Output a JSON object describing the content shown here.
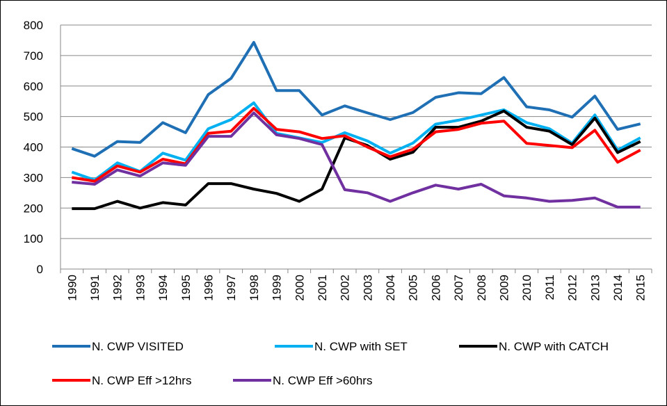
{
  "chart_data": {
    "type": "line",
    "categories": [
      "1990",
      "1991",
      "1992",
      "1993",
      "1994",
      "1995",
      "1996",
      "1997",
      "1998",
      "1999",
      "2000",
      "2001",
      "2002",
      "2003",
      "2004",
      "2005",
      "2006",
      "2007",
      "2008",
      "2009",
      "2010",
      "2011",
      "2012",
      "2013",
      "2014",
      "2015"
    ],
    "series": [
      {
        "name": "N. CWP VISITED",
        "color": "#1f6fb5",
        "values": [
          395,
          370,
          418,
          415,
          480,
          447,
          572,
          625,
          743,
          585,
          585,
          505,
          535,
          512,
          490,
          513,
          563,
          578,
          575,
          628,
          532,
          522,
          498,
          567,
          458,
          476
        ]
      },
      {
        "name": "N. CWP with SET",
        "color": "#00b0f0",
        "values": [
          318,
          292,
          348,
          320,
          380,
          357,
          460,
          490,
          545,
          445,
          430,
          415,
          447,
          420,
          380,
          413,
          475,
          488,
          505,
          522,
          480,
          460,
          413,
          505,
          390,
          430
        ]
      },
      {
        "name": "N. CWP with CATCH",
        "color": "#000000",
        "values": [
          198,
          198,
          222,
          200,
          218,
          210,
          280,
          280,
          262,
          248,
          222,
          262,
          430,
          405,
          360,
          383,
          465,
          465,
          485,
          518,
          465,
          452,
          408,
          495,
          382,
          418
        ]
      },
      {
        "name": "N. CWP Eff >12hrs",
        "color": "#ff0000",
        "values": [
          300,
          288,
          338,
          318,
          360,
          345,
          445,
          452,
          527,
          458,
          450,
          428,
          437,
          400,
          368,
          393,
          450,
          458,
          478,
          485,
          412,
          405,
          398,
          455,
          350,
          390
        ]
      },
      {
        "name": "N. CWP Eff >60hrs",
        "color": "#7030a0",
        "values": [
          285,
          278,
          325,
          305,
          348,
          340,
          435,
          435,
          512,
          440,
          428,
          408,
          260,
          250,
          222,
          250,
          275,
          262,
          278,
          240,
          233,
          222,
          225,
          233,
          203,
          203
        ]
      }
    ],
    "ylim": [
      0,
      800
    ],
    "yticks": [
      0,
      100,
      200,
      300,
      400,
      500,
      600,
      700,
      800
    ],
    "grid": true,
    "legend": "bottom"
  }
}
